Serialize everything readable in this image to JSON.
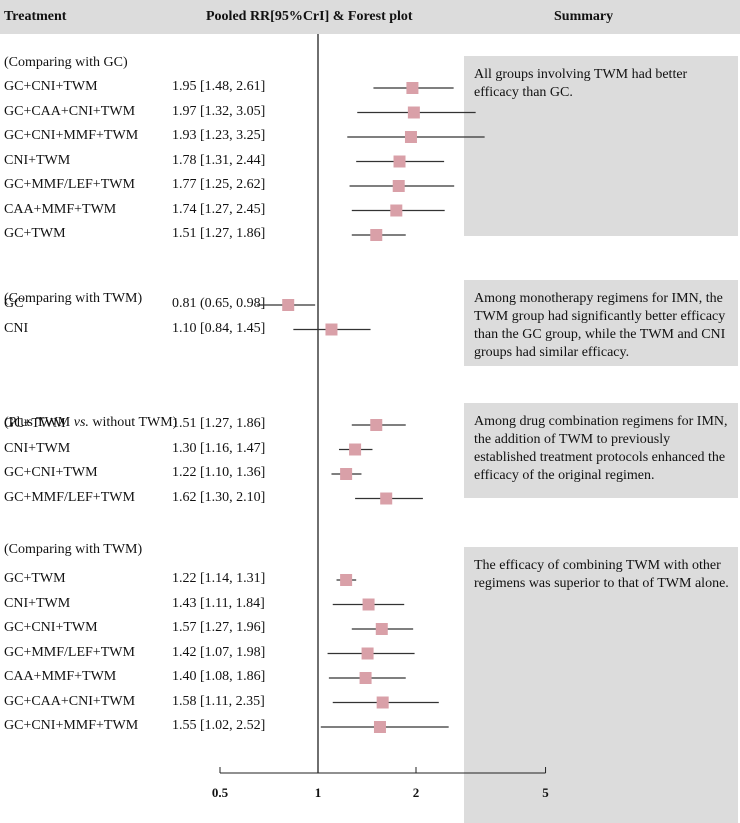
{
  "header": {
    "treatment": "Treatment",
    "pooled": "Pooled RR[95%CrI] & Forest plot",
    "summary": "Summary"
  },
  "colors": {
    "header_bg": "#dcdcdc",
    "summary_bg": "#dcdcdc",
    "marker": "#d9a0a8",
    "line": "#333333"
  },
  "chart_data": {
    "type": "forest",
    "x_scale": "log",
    "xlim": [
      0.5,
      5
    ],
    "reference_line": 1,
    "ticks": [
      {
        "value": 0.5,
        "label": "0.5"
      },
      {
        "value": 1,
        "label": "1"
      },
      {
        "value": 2,
        "label": "2"
      },
      {
        "value": 5,
        "label": "5"
      }
    ],
    "groups": [
      {
        "title": "(Comparing with GC)",
        "summary": "All groups involving TWM had better efficacy than GC.",
        "rows": [
          {
            "label": "GC+CNI+TWM",
            "est": 1.95,
            "lo": 1.48,
            "hi": 2.61,
            "text": "1.95 [1.48, 2.61]"
          },
          {
            "label": "GC+CAA+CNI+TWM",
            "est": 1.97,
            "lo": 1.32,
            "hi": 3.05,
            "text": "1.97 [1.32, 3.05]"
          },
          {
            "label": "GC+CNI+MMF+TWM",
            "est": 1.93,
            "lo": 1.23,
            "hi": 3.25,
            "text": "1.93 [1.23, 3.25]"
          },
          {
            "label": "CNI+TWM",
            "est": 1.78,
            "lo": 1.31,
            "hi": 2.44,
            "text": "1.78 [1.31, 2.44]"
          },
          {
            "label": "GC+MMF/LEF+TWM",
            "est": 1.77,
            "lo": 1.25,
            "hi": 2.62,
            "text": "1.77 [1.25, 2.62]"
          },
          {
            "label": "CAA+MMF+TWM",
            "est": 1.74,
            "lo": 1.27,
            "hi": 2.45,
            "text": "1.74 [1.27, 2.45]"
          },
          {
            "label": "GC+TWM",
            "est": 1.51,
            "lo": 1.27,
            "hi": 1.86,
            "text": "1.51 [1.27, 1.86]"
          }
        ]
      },
      {
        "title": "(Comparing with TWM)",
        "summary": "Among monotherapy regimens for IMN, the TWM group had significantly better efficacy than the GC group, while the TWM and CNI groups had similar efficacy.",
        "rows": [
          {
            "label": "GC",
            "est": 0.81,
            "lo": 0.65,
            "hi": 0.98,
            "text": "0.81 (0.65, 0.98]"
          },
          {
            "label": "CNI",
            "est": 1.1,
            "lo": 0.84,
            "hi": 1.45,
            "text": "1.10 [0.84, 1.45]"
          }
        ]
      },
      {
        "title_pre": "(Plus TWM ",
        "title_em": "vs.",
        "title_post": " without TWM)",
        "summary": "Among drug combination regimens for IMN, the addition of TWM to previously established treatment protocols enhanced the efficacy of the original regimen.",
        "rows": [
          {
            "label": "GC+TWM",
            "est": 1.51,
            "lo": 1.27,
            "hi": 1.86,
            "text": "1.51 [1.27, 1.86]"
          },
          {
            "label": "CNI+TWM",
            "est": 1.3,
            "lo": 1.16,
            "hi": 1.47,
            "text": "1.30 [1.16, 1.47]"
          },
          {
            "label": "GC+CNI+TWM",
            "est": 1.22,
            "lo": 1.1,
            "hi": 1.36,
            "text": "1.22 [1.10, 1.36]"
          },
          {
            "label": "GC+MMF/LEF+TWM",
            "est": 1.62,
            "lo": 1.3,
            "hi": 2.1,
            "text": "1.62 [1.30, 2.10]"
          }
        ]
      },
      {
        "title": "(Comparing with TWM)",
        "summary": "The efficacy of combining TWM with other regimens was superior to that of TWM alone.",
        "rows": [
          {
            "label": "GC+TWM",
            "est": 1.22,
            "lo": 1.14,
            "hi": 1.31,
            "text": "1.22 [1.14, 1.31]"
          },
          {
            "label": "CNI+TWM",
            "est": 1.43,
            "lo": 1.11,
            "hi": 1.84,
            "text": "1.43 [1.11, 1.84]"
          },
          {
            "label": "GC+CNI+TWM",
            "est": 1.57,
            "lo": 1.27,
            "hi": 1.96,
            "text": "1.57 [1.27, 1.96]"
          },
          {
            "label": "GC+MMF/LEF+TWM",
            "est": 1.42,
            "lo": 1.07,
            "hi": 1.98,
            "text": "1.42 [1.07, 1.98]"
          },
          {
            "label": "CAA+MMF+TWM",
            "est": 1.4,
            "lo": 1.08,
            "hi": 1.86,
            "text": "1.40 [1.08, 1.86]"
          },
          {
            "label": "GC+CAA+CNI+TWM",
            "est": 1.58,
            "lo": 1.11,
            "hi": 2.35,
            "text": "1.58 [1.11, 2.35]"
          },
          {
            "label": "GC+CNI+MMF+TWM",
            "est": 1.55,
            "lo": 1.02,
            "hi": 2.52,
            "text": "1.55 [1.02, 2.52]"
          }
        ]
      }
    ]
  }
}
